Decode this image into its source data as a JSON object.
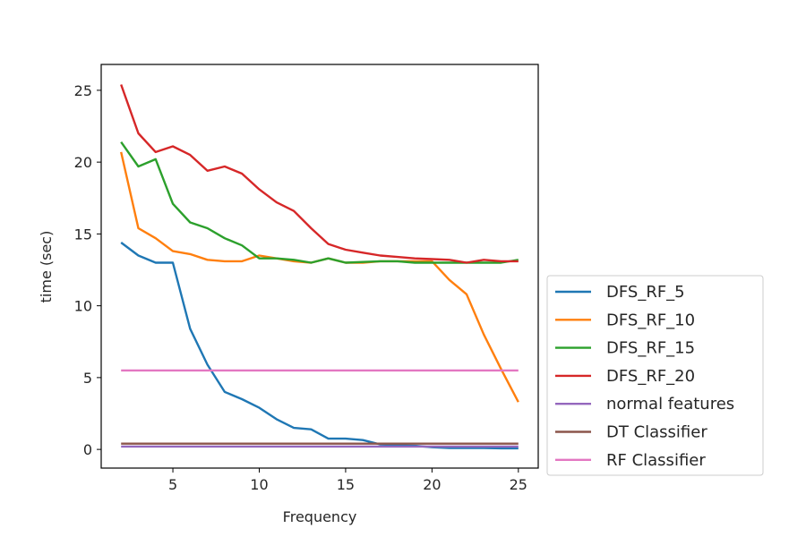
{
  "chart_data": {
    "type": "line",
    "xlabel": "Frequency",
    "ylabel": "time (sec)",
    "xlim": [
      0.85,
      26.15
    ],
    "ylim": [
      -1.3,
      26.8
    ],
    "xticks": [
      5,
      10,
      15,
      20,
      25
    ],
    "yticks": [
      0,
      5,
      10,
      15,
      20,
      25
    ],
    "grid": false,
    "legend_position": "outside-right-bottom",
    "x": [
      2,
      3,
      4,
      5,
      6,
      7,
      8,
      9,
      10,
      11,
      12,
      13,
      14,
      15,
      16,
      17,
      18,
      19,
      20,
      21,
      22,
      23,
      24,
      25
    ],
    "series": [
      {
        "name": "DFS_RF_5",
        "color": "#1f77b4",
        "values": [
          14.4,
          13.5,
          13.0,
          13.0,
          8.4,
          5.9,
          4.0,
          3.5,
          2.9,
          2.1,
          1.5,
          1.4,
          0.75,
          0.75,
          0.65,
          0.35,
          0.3,
          0.25,
          0.15,
          0.1,
          0.1,
          0.1,
          0.08,
          0.08
        ]
      },
      {
        "name": "DFS_RF_10",
        "color": "#ff7f0e",
        "values": [
          20.7,
          15.4,
          14.7,
          13.8,
          13.6,
          13.2,
          13.1,
          13.1,
          13.5,
          13.3,
          13.1,
          13.0,
          13.3,
          13.0,
          13.0,
          13.1,
          13.1,
          13.1,
          13.1,
          11.8,
          10.8,
          8.0,
          5.6,
          3.3
        ]
      },
      {
        "name": "DFS_RF_15",
        "color": "#2ca02c",
        "values": [
          21.4,
          19.7,
          20.2,
          17.1,
          15.8,
          15.4,
          14.7,
          14.2,
          13.3,
          13.3,
          13.2,
          13.0,
          13.3,
          13.0,
          13.05,
          13.1,
          13.1,
          13.0,
          13.0,
          13.0,
          13.0,
          13.0,
          13.0,
          13.2
        ]
      },
      {
        "name": "DFS_RF_20",
        "color": "#d62728",
        "values": [
          25.4,
          22.0,
          20.7,
          21.1,
          20.5,
          19.4,
          19.7,
          19.2,
          18.1,
          17.2,
          16.6,
          15.4,
          14.3,
          13.9,
          13.7,
          13.5,
          13.4,
          13.3,
          13.25,
          13.2,
          13.0,
          13.2,
          13.1,
          13.1
        ]
      },
      {
        "name": "normal features",
        "color": "#9467bd",
        "values": [
          0.2,
          0.2,
          0.2,
          0.2,
          0.2,
          0.2,
          0.2,
          0.2,
          0.2,
          0.2,
          0.2,
          0.2,
          0.2,
          0.2,
          0.2,
          0.2,
          0.2,
          0.2,
          0.2,
          0.2,
          0.2,
          0.2,
          0.2,
          0.2
        ]
      },
      {
        "name": "DT Classifier",
        "color": "#8c564b",
        "values": [
          0.4,
          0.4,
          0.4,
          0.4,
          0.4,
          0.4,
          0.4,
          0.4,
          0.4,
          0.4,
          0.4,
          0.4,
          0.4,
          0.4,
          0.4,
          0.4,
          0.4,
          0.4,
          0.4,
          0.4,
          0.4,
          0.4,
          0.4,
          0.4
        ]
      },
      {
        "name": "RF Classifier",
        "color": "#e377c2",
        "values": [
          5.5,
          5.5,
          5.5,
          5.5,
          5.5,
          5.5,
          5.5,
          5.5,
          5.5,
          5.5,
          5.5,
          5.5,
          5.5,
          5.5,
          5.5,
          5.5,
          5.5,
          5.5,
          5.5,
          5.5,
          5.5,
          5.5,
          5.5,
          5.5
        ]
      }
    ]
  }
}
